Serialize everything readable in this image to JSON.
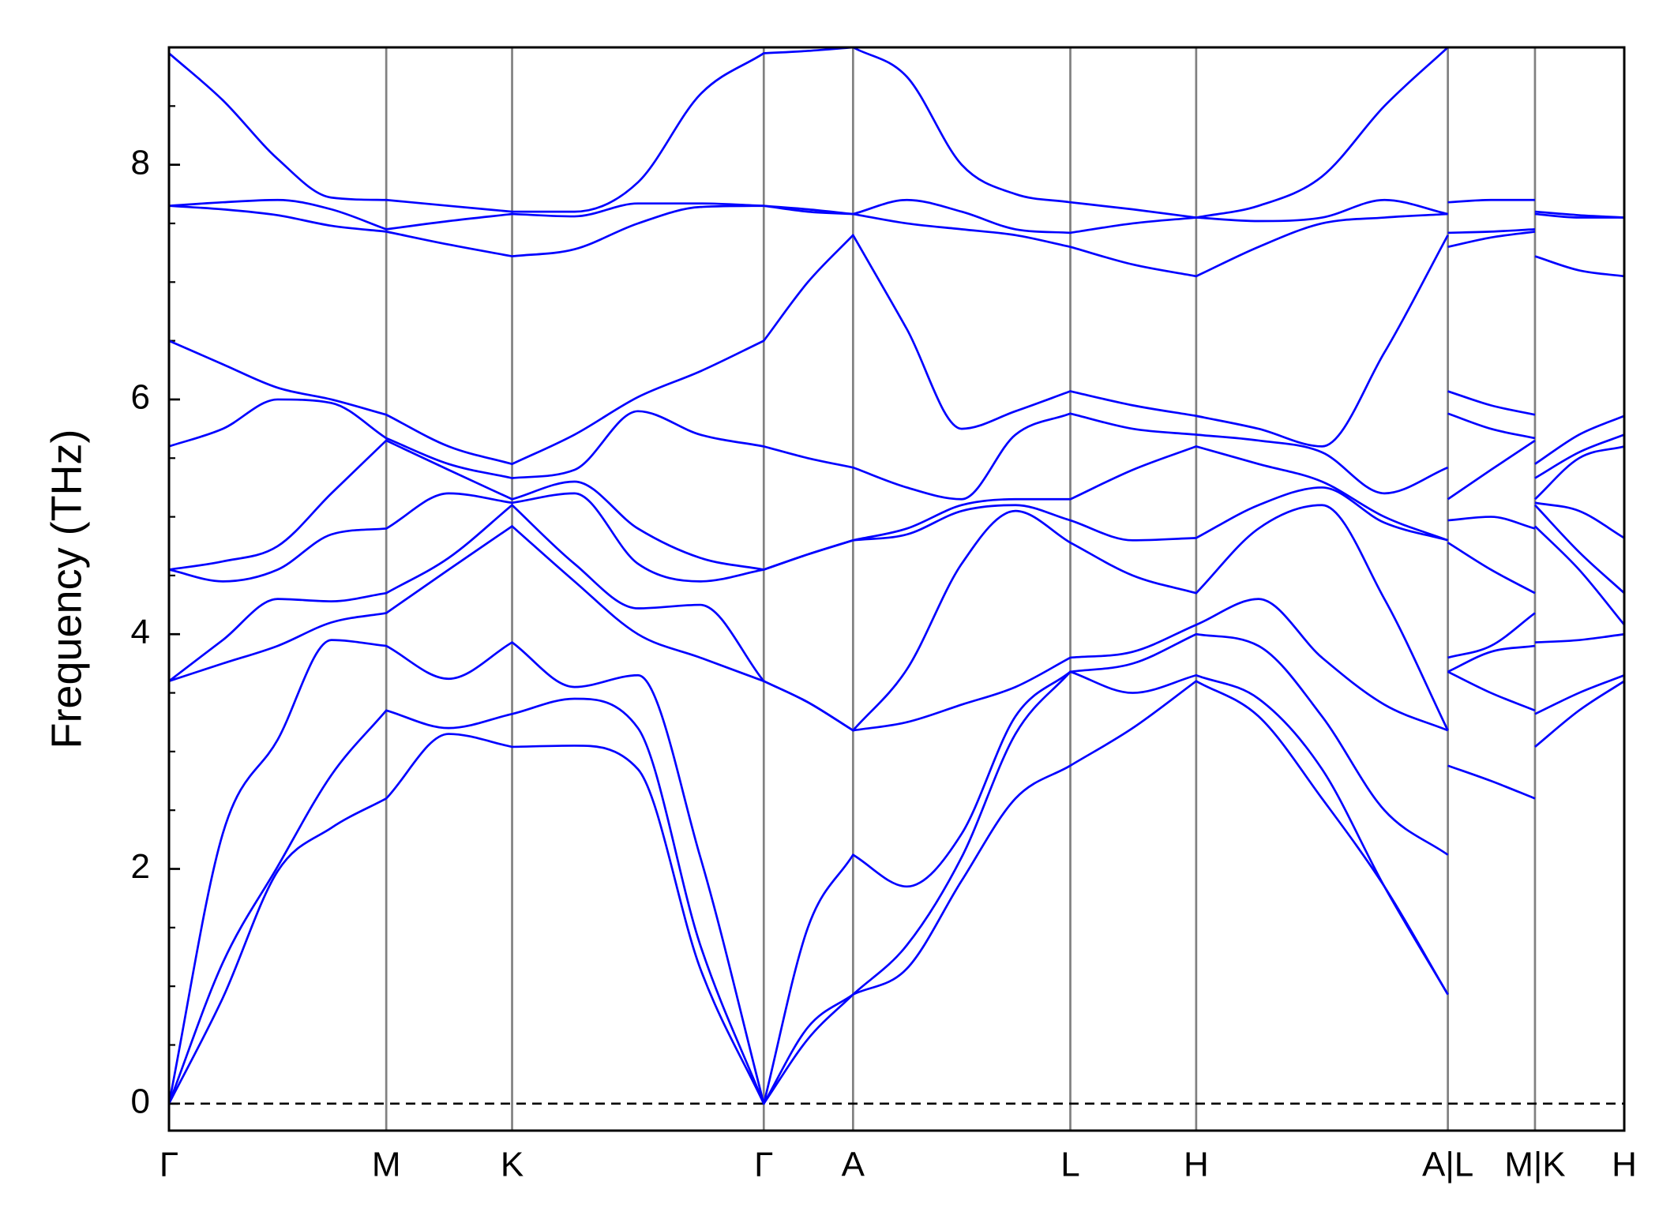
{
  "chart_data": {
    "type": "line",
    "ylabel": "Frequency (THz)",
    "x": [
      0,
      0.5,
      1.01,
      1.51,
      2.02,
      2.6,
      3.19,
      3.77,
      4.36,
      4.94,
      5.53,
      5.94,
      6.36,
      6.86,
      7.37,
      7.87,
      8.38,
      8.96,
      9.55,
      10.13,
      10.72,
      11.3,
      11.89,
      11.89,
      11.89,
      12.29,
      12.7,
      12.7,
      12.7,
      13.11,
      13.53
    ],
    "xlim": [
      0,
      13.53
    ],
    "xticks": [
      {
        "value": 0,
        "label": "Γ"
      },
      {
        "value": 2.02,
        "label": "M"
      },
      {
        "value": 3.19,
        "label": "K"
      },
      {
        "value": 5.53,
        "label": "Γ"
      },
      {
        "value": 6.36,
        "label": "A"
      },
      {
        "value": 8.38,
        "label": "L"
      },
      {
        "value": 9.55,
        "label": "H"
      },
      {
        "value": 11.89,
        "label": "A|L"
      },
      {
        "value": 12.7,
        "label": "M|K"
      },
      {
        "value": 13.53,
        "label": "H"
      }
    ],
    "ylim": [
      -0.23,
      9.0
    ],
    "yticks": [
      0,
      2,
      4,
      6,
      8
    ],
    "yminorticks": [
      0.5,
      1,
      1.5,
      2.5,
      3,
      3.5,
      4.5,
      5,
      5.5,
      6.5,
      7,
      7.5,
      8.5
    ],
    "hline": 0,
    "series": [
      {
        "color": "#0000ff",
        "values": [
          0,
          0.9,
          1.98,
          2.35,
          2.6,
          3.15,
          3.04,
          3.05,
          2.85,
          1.15,
          0,
          0.55,
          0.93,
          1.15,
          1.9,
          2.6,
          2.88,
          3.2,
          3.6,
          3.3,
          2.6,
          1.85,
          0.93,
          null,
          2.88,
          2.75,
          2.6,
          null,
          3.04,
          3.35,
          3.6
        ]
      },
      {
        "color": "#0000ff",
        "values": [
          0,
          1.2,
          2.02,
          2.8,
          3.35,
          3.2,
          3.32,
          3.45,
          3.2,
          1.35,
          0,
          0.65,
          0.93,
          1.35,
          2.1,
          3.15,
          3.68,
          3.5,
          3.65,
          3.45,
          2.85,
          1.85,
          0.93,
          null,
          3.68,
          3.5,
          3.35,
          null,
          3.32,
          3.5,
          3.65
        ]
      },
      {
        "color": "#0000ff",
        "values": [
          0,
          2.3,
          3.1,
          3.95,
          3.9,
          3.62,
          3.93,
          3.55,
          3.65,
          2.1,
          0,
          1.5,
          2.12,
          1.85,
          2.3,
          3.3,
          3.68,
          3.75,
          4.0,
          3.9,
          3.3,
          2.5,
          2.12,
          null,
          3.68,
          3.85,
          3.9,
          null,
          3.93,
          3.95,
          4.0
        ]
      },
      {
        "color": "#0000ff",
        "values": [
          3.6,
          3.75,
          3.9,
          4.1,
          4.18,
          4.55,
          4.92,
          4.45,
          4.0,
          3.8,
          3.6,
          3.42,
          3.18,
          3.25,
          3.4,
          3.55,
          3.8,
          3.85,
          4.08,
          4.3,
          3.8,
          3.4,
          3.18,
          null,
          3.8,
          3.9,
          4.18,
          null,
          4.92,
          4.55,
          4.08
        ]
      },
      {
        "color": "#0000ff",
        "values": [
          3.6,
          3.95,
          4.3,
          4.28,
          4.35,
          4.65,
          5.1,
          4.6,
          4.22,
          4.25,
          3.6,
          3.42,
          3.18,
          3.7,
          4.6,
          5.05,
          4.78,
          4.5,
          4.35,
          4.9,
          5.1,
          4.3,
          3.18,
          null,
          4.78,
          4.55,
          4.35,
          null,
          5.1,
          4.7,
          4.35
        ]
      },
      {
        "color": "#0000ff",
        "values": [
          4.55,
          4.45,
          4.55,
          4.85,
          4.9,
          5.2,
          5.12,
          5.2,
          4.6,
          4.45,
          4.55,
          4.68,
          4.8,
          4.85,
          5.05,
          5.1,
          4.97,
          4.8,
          4.82,
          5.1,
          5.25,
          4.95,
          4.8,
          null,
          4.97,
          5.0,
          4.9,
          null,
          5.12,
          5.05,
          4.82
        ]
      },
      {
        "color": "#0000ff",
        "values": [
          4.55,
          4.62,
          4.75,
          5.2,
          5.65,
          5.4,
          5.15,
          5.3,
          4.9,
          4.65,
          4.55,
          4.68,
          4.8,
          4.9,
          5.1,
          5.15,
          5.15,
          5.4,
          5.6,
          5.45,
          5.3,
          5.0,
          4.8,
          null,
          5.15,
          5.4,
          5.65,
          null,
          5.15,
          5.5,
          5.6
        ]
      },
      {
        "color": "#0000ff",
        "values": [
          5.6,
          5.75,
          6.0,
          5.97,
          5.67,
          5.45,
          5.33,
          5.4,
          5.9,
          5.7,
          5.6,
          5.5,
          5.42,
          5.25,
          5.15,
          5.7,
          5.88,
          5.75,
          5.7,
          5.65,
          5.55,
          5.2,
          5.42,
          null,
          5.88,
          5.75,
          5.67,
          null,
          5.33,
          5.55,
          5.7
        ]
      },
      {
        "color": "#0000ff",
        "values": [
          6.5,
          6.3,
          6.1,
          6.0,
          5.87,
          5.6,
          5.45,
          5.7,
          6.02,
          6.24,
          6.5,
          7.0,
          7.4,
          6.6,
          5.75,
          5.9,
          6.07,
          5.95,
          5.86,
          5.75,
          5.6,
          6.4,
          7.4,
          null,
          6.07,
          5.95,
          5.87,
          null,
          5.45,
          5.7,
          5.86
        ]
      },
      {
        "color": "#0000ff",
        "values": [
          7.65,
          7.62,
          7.57,
          7.48,
          7.43,
          7.32,
          7.22,
          7.28,
          7.5,
          7.64,
          7.65,
          7.6,
          7.58,
          7.5,
          7.45,
          7.4,
          7.3,
          7.15,
          7.05,
          7.3,
          7.5,
          7.55,
          7.58,
          null,
          7.3,
          7.38,
          7.43,
          null,
          7.22,
          7.1,
          7.05
        ]
      },
      {
        "color": "#0000ff",
        "values": [
          7.65,
          7.68,
          7.7,
          7.62,
          7.45,
          7.52,
          7.58,
          7.56,
          7.67,
          7.67,
          7.65,
          7.62,
          7.58,
          7.7,
          7.6,
          7.45,
          7.42,
          7.5,
          7.55,
          7.52,
          7.55,
          7.7,
          7.58,
          null,
          7.42,
          7.43,
          7.45,
          null,
          7.58,
          7.55,
          7.55
        ]
      },
      {
        "color": "#0000ff",
        "values": [
          8.95,
          8.55,
          8.05,
          7.72,
          7.7,
          7.65,
          7.6,
          7.6,
          7.85,
          8.6,
          8.95,
          8.97,
          9.0,
          8.75,
          8.0,
          7.75,
          7.68,
          7.62,
          7.55,
          7.65,
          7.9,
          8.5,
          9.0,
          null,
          7.68,
          7.7,
          7.7,
          null,
          7.6,
          7.57,
          7.55
        ]
      }
    ]
  }
}
